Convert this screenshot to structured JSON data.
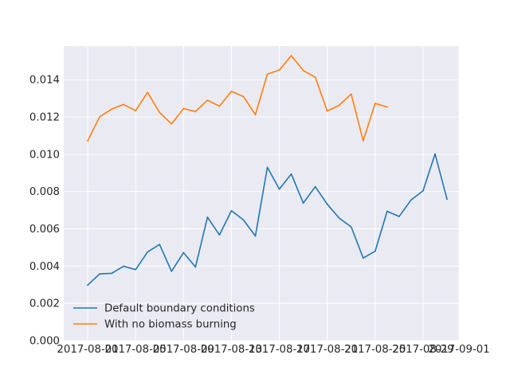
{
  "chart_data": {
    "type": "line",
    "xlabel": "",
    "ylabel": "",
    "xlim": [
      "2017-07-30",
      "2017-09-01"
    ],
    "ylim": [
      0.0,
      0.0158
    ],
    "grid": true,
    "legend_position": "lower-left",
    "x_ticks": [
      "2017-08-01",
      "2017-08-05",
      "2017-08-09",
      "2017-08-13",
      "2017-08-17",
      "2017-08-21",
      "2017-08-25",
      "2017-08-29",
      "2017-09-01"
    ],
    "y_ticks": [
      "0.000",
      "0.002",
      "0.004",
      "0.006",
      "0.008",
      "0.010",
      "0.012",
      "0.014"
    ],
    "series": [
      {
        "name": "Default boundary conditions",
        "color": "#1f77b4",
        "x": [
          "2017-08-01",
          "2017-08-02",
          "2017-08-03",
          "2017-08-04",
          "2017-08-05",
          "2017-08-06",
          "2017-08-07",
          "2017-08-08",
          "2017-08-09",
          "2017-08-10",
          "2017-08-11",
          "2017-08-12",
          "2017-08-13",
          "2017-08-14",
          "2017-08-15",
          "2017-08-16",
          "2017-08-17",
          "2017-08-18",
          "2017-08-19",
          "2017-08-20",
          "2017-08-21",
          "2017-08-22",
          "2017-08-23",
          "2017-08-24",
          "2017-08-25",
          "2017-08-26",
          "2017-08-27",
          "2017-08-28",
          "2017-08-29",
          "2017-08-30",
          "2017-08-31"
        ],
        "values": [
          0.00298,
          0.00358,
          0.00361,
          0.00399,
          0.00381,
          0.00476,
          0.00516,
          0.00372,
          0.00472,
          0.00395,
          0.00662,
          0.00567,
          0.00697,
          0.00648,
          0.00561,
          0.0093,
          0.00813,
          0.00894,
          0.00738,
          0.00826,
          0.00732,
          0.00657,
          0.0061,
          0.00443,
          0.0048,
          0.00694,
          0.00666,
          0.00755,
          0.00804,
          0.01002,
          0.00759
        ]
      },
      {
        "name": "With no biomass burning",
        "color": "#ff7f0e",
        "x": [
          "2017-08-01",
          "2017-08-02",
          "2017-08-03",
          "2017-08-04",
          "2017-08-05",
          "2017-08-06",
          "2017-08-07",
          "2017-08-08",
          "2017-08-09",
          "2017-08-10",
          "2017-08-11",
          "2017-08-12",
          "2017-08-13",
          "2017-08-14",
          "2017-08-15",
          "2017-08-16",
          "2017-08-17",
          "2017-08-18",
          "2017-08-19",
          "2017-08-20",
          "2017-08-21",
          "2017-08-22",
          "2017-08-23",
          "2017-08-24",
          "2017-08-25",
          "2017-08-26"
        ],
        "values": [
          0.01072,
          0.01201,
          0.01242,
          0.01267,
          0.01234,
          0.01332,
          0.01224,
          0.01163,
          0.01245,
          0.01229,
          0.0129,
          0.01258,
          0.01337,
          0.0131,
          0.01212,
          0.0143,
          0.01452,
          0.01529,
          0.01449,
          0.01413,
          0.01232,
          0.01263,
          0.01323,
          0.01072,
          0.01273,
          0.01253
        ]
      }
    ]
  }
}
